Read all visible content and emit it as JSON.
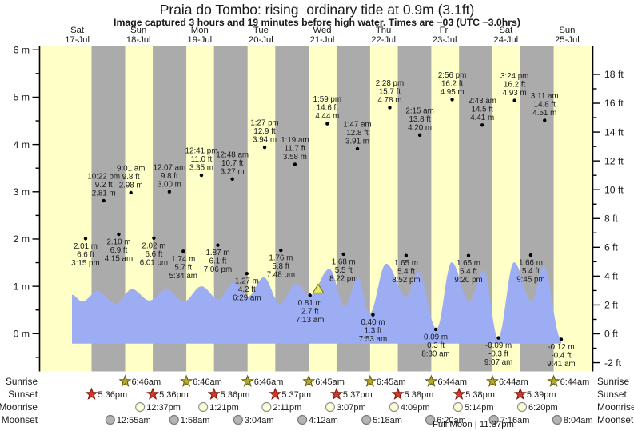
{
  "chart_data": {
    "type": "area",
    "title": "Praia do Tombo: rising  ordinary tide at 0.9m (3.1ft)",
    "subtitle": "Image captured 3 hours and 19 minutes before high water. Times are −03 (UTC −3.0hrs)",
    "axes": {
      "left_unit": "m",
      "left_tick_labels": [
        "0 m",
        "1 m",
        "2 m",
        "3 m",
        "4 m",
        "5 m",
        "6 m"
      ],
      "right_unit": "ft",
      "right_tick_labels": [
        "-2 ft",
        "0 ft",
        "2 ft",
        "4 ft",
        "6 ft",
        "8 ft",
        "10 ft",
        "12 ft",
        "14 ft",
        "16 ft",
        "18 ft"
      ],
      "left_range": [
        0,
        6
      ],
      "right_range": [
        -2,
        18
      ]
    },
    "days": [
      {
        "weekday": "Sat",
        "date": "17-Jul"
      },
      {
        "weekday": "Sun",
        "date": "18-Jul"
      },
      {
        "weekday": "Mon",
        "date": "19-Jul"
      },
      {
        "weekday": "Tue",
        "date": "20-Jul"
      },
      {
        "weekday": "Wed",
        "date": "21-Jul"
      },
      {
        "weekday": "Thu",
        "date": "22-Jul"
      },
      {
        "weekday": "Fri",
        "date": "23-Jul"
      },
      {
        "weekday": "Sat",
        "date": "24-Jul"
      },
      {
        "weekday": "Sun",
        "date": "25-Jul"
      }
    ],
    "tide_events": [
      {
        "day": 0,
        "time": "3:15 pm",
        "m": 2.01,
        "ft": 6.6,
        "type": "low"
      },
      {
        "day": 0,
        "time": "10:22 pm",
        "m": 2.81,
        "ft": 9.2,
        "type": "high"
      },
      {
        "day": 1,
        "time": "4:15 am",
        "m": 2.1,
        "ft": 6.9,
        "type": "low"
      },
      {
        "day": 1,
        "time": "9:01 am",
        "m": 2.98,
        "ft": 9.8,
        "type": "high"
      },
      {
        "day": 1,
        "time": "6:01 pm",
        "m": 2.02,
        "ft": 6.6,
        "type": "low"
      },
      {
        "day": 2,
        "time": "12:07 am",
        "m": 3.0,
        "ft": 9.8,
        "type": "high"
      },
      {
        "day": 2,
        "time": "5:34 am",
        "m": 1.74,
        "ft": 5.7,
        "type": "low"
      },
      {
        "day": 2,
        "time": "12:41 pm",
        "m": 3.35,
        "ft": 11.0,
        "type": "high"
      },
      {
        "day": 2,
        "time": "7:06 pm",
        "m": 1.87,
        "ft": 6.1,
        "type": "low"
      },
      {
        "day": 3,
        "time": "12:48 am",
        "m": 3.27,
        "ft": 10.7,
        "type": "high"
      },
      {
        "day": 3,
        "time": "6:29 am",
        "m": 1.27,
        "ft": 4.2,
        "type": "low"
      },
      {
        "day": 3,
        "time": "1:27 pm",
        "m": 3.94,
        "ft": 12.9,
        "type": "high"
      },
      {
        "day": 3,
        "time": "7:48 pm",
        "m": 1.76,
        "ft": 5.8,
        "type": "low"
      },
      {
        "day": 4,
        "time": "1:19 am",
        "m": 3.58,
        "ft": 11.7,
        "type": "high"
      },
      {
        "day": 4,
        "time": "7:13 am",
        "m": 0.81,
        "ft": 2.7,
        "type": "low"
      },
      {
        "day": 4,
        "time": "1:59 pm",
        "m": 4.44,
        "ft": 14.6,
        "type": "high"
      },
      {
        "day": 4,
        "time": "8:22 pm",
        "m": 1.68,
        "ft": 5.5,
        "type": "low"
      },
      {
        "day": 5,
        "time": "1:47 am",
        "m": 3.91,
        "ft": 12.8,
        "type": "high"
      },
      {
        "day": 5,
        "time": "7:53 am",
        "m": 0.4,
        "ft": 1.3,
        "type": "low"
      },
      {
        "day": 5,
        "time": "2:28 pm",
        "m": 4.78,
        "ft": 15.7,
        "type": "high"
      },
      {
        "day": 5,
        "time": "8:52 pm",
        "m": 1.65,
        "ft": 5.4,
        "type": "low"
      },
      {
        "day": 6,
        "time": "2:15 am",
        "m": 4.2,
        "ft": 13.8,
        "type": "high"
      },
      {
        "day": 6,
        "time": "8:30 am",
        "m": 0.09,
        "ft": 0.3,
        "type": "low"
      },
      {
        "day": 6,
        "time": "2:56 pm",
        "m": 4.95,
        "ft": 16.2,
        "type": "high"
      },
      {
        "day": 6,
        "time": "9:20 pm",
        "m": 1.65,
        "ft": 5.4,
        "type": "low"
      },
      {
        "day": 7,
        "time": "2:43 am",
        "m": 4.41,
        "ft": 14.5,
        "type": "high"
      },
      {
        "day": 7,
        "time": "9:07 am",
        "m": -0.09,
        "ft": -0.3,
        "type": "low"
      },
      {
        "day": 7,
        "time": "3:24 pm",
        "m": 4.93,
        "ft": 16.2,
        "type": "high"
      },
      {
        "day": 7,
        "time": "9:45 pm",
        "m": 1.66,
        "ft": 5.4,
        "type": "low"
      },
      {
        "day": 8,
        "time": "3:11 am",
        "m": 4.51,
        "ft": 14.8,
        "type": "high"
      },
      {
        "day": 8,
        "time": "9:41 am",
        "m": -0.12,
        "ft": -0.4,
        "type": "low"
      }
    ],
    "curve_visual_m": [
      [
        0.414,
        0.82
      ],
      [
        0.583,
        0.68
      ],
      [
        0.832,
        0.9
      ],
      [
        1.132,
        0.63
      ],
      [
        1.393,
        0.94
      ],
      [
        1.68,
        0.7
      ],
      [
        1.954,
        0.94
      ],
      [
        2.242,
        0.68
      ],
      [
        2.529,
        1.0
      ],
      [
        2.803,
        0.73
      ],
      [
        3.064,
        1.09
      ],
      [
        3.286,
        0.78
      ],
      [
        3.547,
        1.19
      ],
      [
        3.808,
        0.63
      ],
      [
        4.069,
        1.05
      ],
      [
        4.304,
        0.81
      ],
      [
        4.617,
        1.37
      ],
      [
        4.865,
        0.58
      ],
      [
        5.087,
        1.19
      ],
      [
        5.27,
        0.42
      ],
      [
        5.544,
        1.48
      ],
      [
        5.87,
        0.78
      ],
      [
        6.066,
        1.31
      ],
      [
        6.366,
        0.1
      ],
      [
        6.614,
        1.51
      ],
      [
        6.901,
        0.68
      ],
      [
        7.136,
        1.34
      ],
      [
        7.372,
        -0.09
      ],
      [
        7.633,
        1.51
      ],
      [
        7.92,
        0.68
      ],
      [
        8.116,
        1.43
      ],
      [
        8.403,
        -0.12
      ]
    ],
    "fill_base_m": -0.21,
    "captured_marker": {
      "t_days": 4.435
    },
    "astro": {
      "row_labels": [
        "Sunrise",
        "Sunset",
        "Moonrise",
        "Moonset"
      ],
      "sunrise": [
        {
          "day": 1,
          "time": "6:46am"
        },
        {
          "day": 2,
          "time": "6:46am"
        },
        {
          "day": 3,
          "time": "6:46am"
        },
        {
          "day": 4,
          "time": "6:45am"
        },
        {
          "day": 5,
          "time": "6:45am"
        },
        {
          "day": 6,
          "time": "6:44am"
        },
        {
          "day": 7,
          "time": "6:44am"
        },
        {
          "day": 8,
          "time": "6:44am"
        }
      ],
      "sunset": [
        {
          "day": 0,
          "time": "5:36pm"
        },
        {
          "day": 1,
          "time": "5:36pm"
        },
        {
          "day": 2,
          "time": "5:36pm"
        },
        {
          "day": 3,
          "time": "5:37pm"
        },
        {
          "day": 4,
          "time": "5:37pm"
        },
        {
          "day": 5,
          "time": "5:38pm"
        },
        {
          "day": 6,
          "time": "5:38pm"
        },
        {
          "day": 7,
          "time": "5:39pm"
        }
      ],
      "moonrise": [
        {
          "day": 1,
          "time": "12:37pm"
        },
        {
          "day": 2,
          "time": "1:21pm"
        },
        {
          "day": 3,
          "time": "2:11pm"
        },
        {
          "day": 4,
          "time": "3:07pm"
        },
        {
          "day": 5,
          "time": "4:09pm"
        },
        {
          "day": 6,
          "time": "5:14pm"
        },
        {
          "day": 7,
          "time": "6:20pm"
        }
      ],
      "moonset": [
        {
          "day": 1,
          "time": "12:55am"
        },
        {
          "day": 2,
          "time": "1:58am"
        },
        {
          "day": 3,
          "time": "3:04am"
        },
        {
          "day": 4,
          "time": "4:12am"
        },
        {
          "day": 5,
          "time": "5:18am"
        },
        {
          "day": 6,
          "time": "6:20am"
        },
        {
          "day": 7,
          "time": "7:16am"
        },
        {
          "day": 8,
          "time": "8:04am"
        }
      ],
      "full_moon": {
        "label": "Full Moon",
        "time": "11:37pm"
      }
    },
    "colors": {
      "day_band": "#ffffc8",
      "night_band": "#ababab",
      "tide_fill": "#9dadf3",
      "day_label": "#ee3b30",
      "text": "#1a1a1a",
      "axis": "#000000",
      "sunrise_star_fill": "#b6aa2f",
      "sunrise_star_stroke": "#5d560e",
      "sunset_star_fill": "#d13a28",
      "sunset_star_stroke": "#7d1609",
      "moonrise_fill": "#ffffd6",
      "moonrise_stroke": "#909090",
      "moonset_fill": "#b4b4b4",
      "moonset_stroke": "#7a7a7a",
      "marker_fill": "#e9e969",
      "marker_stroke": "#82821a"
    }
  }
}
